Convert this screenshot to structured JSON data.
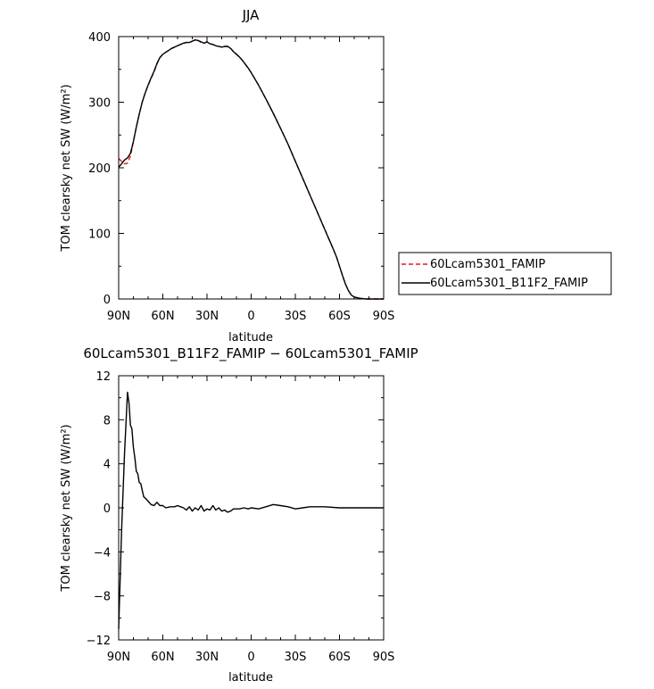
{
  "chart_data": [
    {
      "type": "line",
      "title": "JJA",
      "xlabel": "latitude",
      "ylabel": "TOM clearsky net SW (W/m²)",
      "xlim": [
        90,
        -90
      ],
      "ylim": [
        0,
        400
      ],
      "xticks": [
        90,
        60,
        30,
        0,
        -30,
        -60,
        -90
      ],
      "xtick_labels": [
        "90N",
        "60N",
        "30N",
        "0",
        "30S",
        "60S",
        "90S"
      ],
      "yticks": [
        0,
        100,
        200,
        300,
        400
      ],
      "ytick_labels": [
        "0",
        "100",
        "200",
        "300",
        "400"
      ],
      "legend_position": "right",
      "grid": false,
      "series": [
        {
          "name": "60Lcam5301_FAMIP",
          "color": "#e41a1c",
          "dash": "dashed",
          "x": [
            90,
            88,
            86,
            84,
            82,
            80,
            78,
            76,
            74,
            72,
            70,
            68,
            66,
            64,
            62,
            60,
            58,
            56,
            54,
            52,
            50,
            48,
            46,
            44,
            42,
            40,
            38,
            36,
            34,
            32,
            30,
            28,
            26,
            24,
            22,
            20,
            18,
            16,
            14,
            12,
            10,
            8,
            6,
            4,
            2,
            0,
            -5,
            -10,
            -15,
            -20,
            -25,
            -30,
            -35,
            -40,
            -45,
            -50,
            -55,
            -58,
            -60,
            -62,
            -64,
            -66,
            -68,
            -70,
            -74,
            -78,
            -82,
            -86,
            -90
          ],
          "y": [
            214,
            210,
            206,
            207,
            218,
            240,
            262,
            282,
            300,
            314,
            326,
            336,
            346,
            358,
            368,
            373,
            376,
            379,
            382,
            384,
            386,
            388,
            390,
            391,
            391,
            393,
            395,
            394,
            391,
            390,
            392,
            389,
            388,
            386,
            385,
            384,
            385,
            385,
            382,
            377,
            373,
            369,
            364,
            358,
            352,
            345,
            326,
            305,
            283,
            260,
            236,
            210,
            184,
            158,
            132,
            106,
            80,
            64,
            50,
            36,
            23,
            13,
            6,
            3,
            1,
            0,
            0,
            0,
            0
          ]
        },
        {
          "name": "60Lcam5301_B11F2_FAMIP",
          "color": "#000000",
          "dash": "solid",
          "x": [
            90,
            88,
            86,
            84,
            82,
            80,
            78,
            76,
            74,
            72,
            70,
            68,
            66,
            64,
            62,
            60,
            58,
            56,
            54,
            52,
            50,
            48,
            46,
            44,
            42,
            40,
            38,
            36,
            34,
            32,
            30,
            28,
            26,
            24,
            22,
            20,
            18,
            16,
            14,
            12,
            10,
            8,
            6,
            4,
            2,
            0,
            -5,
            -10,
            -15,
            -20,
            -25,
            -30,
            -35,
            -40,
            -45,
            -50,
            -55,
            -58,
            -60,
            -62,
            -64,
            -66,
            -68,
            -70,
            -74,
            -78,
            -82,
            -86,
            -90
          ],
          "y": [
            201,
            206,
            212,
            215,
            222,
            240,
            262,
            282,
            300,
            314,
            326,
            337,
            347,
            359,
            368,
            373,
            376,
            379,
            382,
            384,
            386,
            388,
            390,
            391,
            391,
            393,
            395,
            394,
            392,
            390,
            392,
            389,
            388,
            386,
            385,
            384,
            385,
            385,
            382,
            377,
            373,
            369,
            364,
            358,
            352,
            345,
            326,
            305,
            283,
            260,
            236,
            210,
            184,
            158,
            132,
            106,
            80,
            64,
            50,
            36,
            23,
            13,
            6,
            3,
            1,
            0,
            0,
            0,
            0
          ]
        }
      ]
    },
    {
      "type": "line",
      "title": "60Lcam5301_B11F2_FAMIP − 60Lcam5301_FAMIP",
      "xlabel": "latitude",
      "ylabel": "TOM clearsky net SW (W/m²)",
      "xlim": [
        90,
        -90
      ],
      "ylim": [
        -12,
        12
      ],
      "xticks": [
        90,
        60,
        30,
        0,
        -30,
        -60,
        -90
      ],
      "xtick_labels": [
        "90N",
        "60N",
        "30N",
        "0",
        "30S",
        "60S",
        "90S"
      ],
      "yticks": [
        -12,
        -8,
        -4,
        0,
        4,
        8,
        12
      ],
      "ytick_labels": [
        "−12",
        "−8",
        "−4",
        "0",
        "4",
        "8",
        "12"
      ],
      "grid": false,
      "series": [
        {
          "color": "#000000",
          "dash": "solid",
          "x": [
            90,
            88,
            86,
            84,
            83,
            82,
            81,
            80,
            79,
            78,
            77,
            76,
            75,
            74,
            73,
            72,
            70,
            68,
            66,
            64,
            62,
            60,
            58,
            55,
            52,
            50,
            48,
            46,
            44,
            42,
            40,
            38,
            36,
            34,
            32,
            30,
            28,
            26,
            24,
            22,
            20,
            18,
            16,
            14,
            12,
            10,
            8,
            5,
            2,
            0,
            -5,
            -10,
            -15,
            -20,
            -25,
            -30,
            -35,
            -40,
            -45,
            -50,
            -60,
            -70,
            -80,
            -90
          ],
          "y": [
            -11,
            -2,
            5,
            10.5,
            9.5,
            7.5,
            7.2,
            5.5,
            4.5,
            3.3,
            3.1,
            2.3,
            2.2,
            1.6,
            1.0,
            0.9,
            0.6,
            0.3,
            0.2,
            0.5,
            0.2,
            0.2,
            0.0,
            0.1,
            0.1,
            0.2,
            0.1,
            0.0,
            -0.2,
            0.1,
            -0.3,
            0.0,
            -0.2,
            0.2,
            -0.3,
            -0.1,
            -0.2,
            0.2,
            -0.2,
            0.0,
            -0.3,
            -0.2,
            -0.4,
            -0.3,
            -0.1,
            -0.1,
            -0.1,
            0.0,
            -0.1,
            0.0,
            -0.1,
            0.1,
            0.3,
            0.2,
            0.1,
            -0.1,
            0.0,
            0.1,
            0.1,
            0.1,
            0.0,
            0.0,
            0.0,
            0.0
          ]
        }
      ]
    }
  ]
}
